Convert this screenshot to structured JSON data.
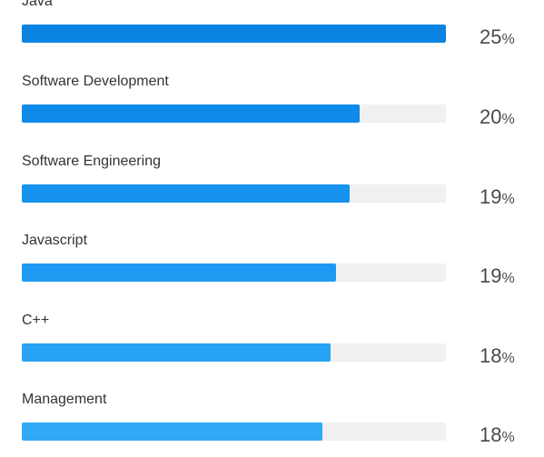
{
  "skills": [
    {
      "label": "Java",
      "value": 25,
      "percent_symbol": "%",
      "fraction_of_max": 1.0,
      "color": "#0a84e0"
    },
    {
      "label": "Software Development",
      "value": 20,
      "percent_symbol": "%",
      "fraction_of_max": 0.796,
      "color": "#0f8ae8"
    },
    {
      "label": "Software Engineering",
      "value": 19,
      "percent_symbol": "%",
      "fraction_of_max": 0.772,
      "color": "#1792ee"
    },
    {
      "label": "Javascript",
      "value": 19,
      "percent_symbol": "%",
      "fraction_of_max": 0.741,
      "color": "#1f9af2"
    },
    {
      "label": "C++",
      "value": 18,
      "percent_symbol": "%",
      "fraction_of_max": 0.728,
      "color": "#28a2f4"
    },
    {
      "label": "Management",
      "value": 18,
      "percent_symbol": "%",
      "fraction_of_max": 0.708,
      "color": "#30aaf6"
    }
  ],
  "track_color": "#f0f0f0"
}
